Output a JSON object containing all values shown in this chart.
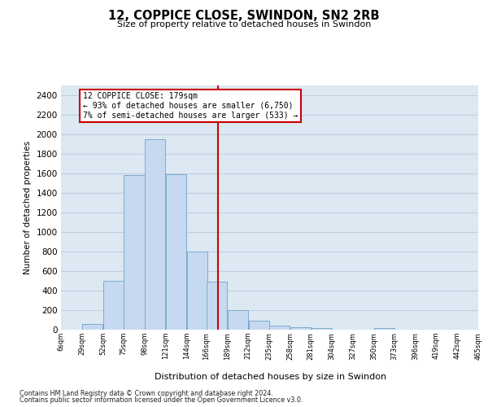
{
  "title": "12, COPPICE CLOSE, SWINDON, SN2 2RB",
  "subtitle": "Size of property relative to detached houses in Swindon",
  "xlabel": "Distribution of detached houses by size in Swindon",
  "ylabel": "Number of detached properties",
  "bar_color": "#c6d9f0",
  "bar_edge_color": "#7aadcf",
  "bg_color": "#dce8f2",
  "grid_color": "#c0cfe0",
  "vline_color": "#cc0000",
  "vline_x": 179,
  "annotation_text": "12 COPPICE CLOSE: 179sqm\n← 93% of detached houses are smaller (6,750)\n7% of semi-detached houses are larger (533) →",
  "bins_left": [
    6,
    29,
    52,
    75,
    98,
    121,
    144,
    166,
    189,
    212,
    235,
    258,
    281,
    304,
    327,
    350,
    373,
    396,
    419,
    442
  ],
  "bins_right_end": 465,
  "bin_width": 23,
  "counts": [
    0,
    55,
    500,
    1580,
    1950,
    1590,
    800,
    490,
    200,
    90,
    40,
    25,
    20,
    0,
    0,
    15,
    0,
    0,
    0,
    0
  ],
  "xlim_left": 6,
  "xlim_right": 465,
  "ylim": [
    0,
    2500
  ],
  "yticks": [
    0,
    200,
    400,
    600,
    800,
    1000,
    1200,
    1400,
    1600,
    1800,
    2000,
    2200,
    2400
  ],
  "xtick_labels": [
    "6sqm",
    "29sqm",
    "52sqm",
    "75sqm",
    "98sqm",
    "121sqm",
    "144sqm",
    "166sqm",
    "189sqm",
    "212sqm",
    "235sqm",
    "258sqm",
    "281sqm",
    "304sqm",
    "327sqm",
    "350sqm",
    "373sqm",
    "396sqm",
    "419sqm",
    "442sqm",
    "465sqm"
  ],
  "footer1": "Contains HM Land Registry data © Crown copyright and database right 2024.",
  "footer2": "Contains public sector information licensed under the Open Government Licence v3.0."
}
